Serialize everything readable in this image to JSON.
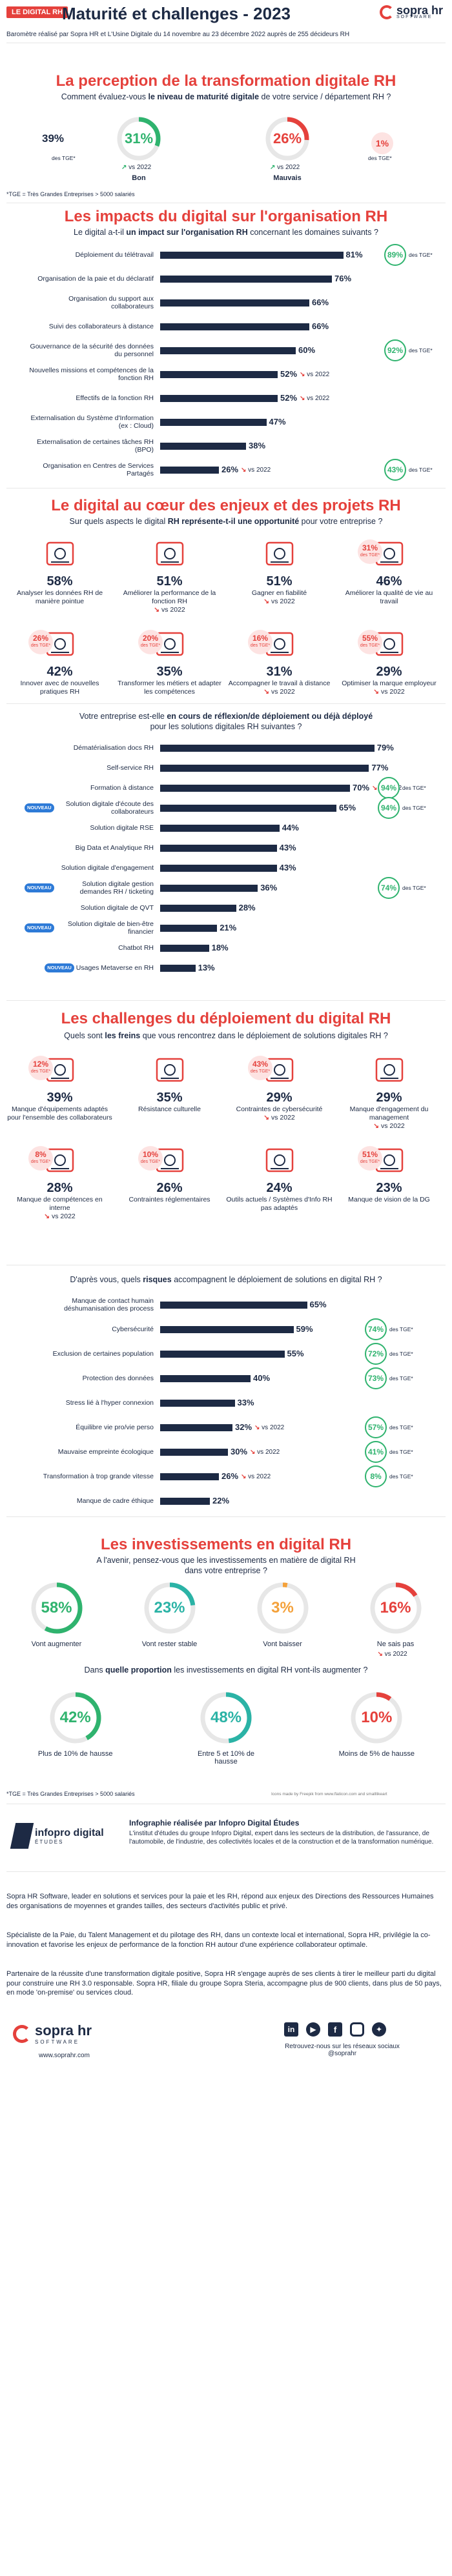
{
  "header": {
    "tag": "LE DIGITAL RH",
    "title": "Maturité et challenges - 2023",
    "brand": "sopra hr",
    "brand_sub": "SOFTWARE",
    "intro": "Baromètre réalisé par Sopra HR et L'Usine Digitale du 14 novembre au 23 décembre 2022 auprès de 255 décideurs RH"
  },
  "s1": {
    "title": "La perception de la transformation digitale RH",
    "q_pre": "Comment évaluez-vous ",
    "q_bold": "le niveau de maturité digitale",
    "q_post": " de votre service / département RH ?",
    "left_pct": "39%",
    "left_tge": "des TGE*",
    "good_pct": "31%",
    "good_trend": "vs 2022",
    "good_label": "Bon",
    "bad_pct": "26%",
    "bad_trend": "vs 2022",
    "bad_label": "Mauvais",
    "right_pct": "1%",
    "right_tge": "des TGE*",
    "note": "*TGE = Très Grandes Entreprises > 5000 salariés"
  },
  "s2": {
    "title": "Les impacts du digital sur l'organisation RH",
    "q_pre": "Le digital a-t-il ",
    "q_bold": "un impact sur l'organisation RH",
    "q_post": " concernant les domaines suivants ?",
    "rows": [
      {
        "label": "Déploiement du télétravail",
        "value": 81,
        "text": "81%"
      },
      {
        "label": "Organisation de la paie et du déclaratif",
        "value": 76,
        "text": "76%"
      },
      {
        "label": "Organisation du support aux collaborateurs",
        "value": 66,
        "text": "66%"
      },
      {
        "label": "Suivi des collaborateurs à distance",
        "value": 66,
        "text": "66%"
      },
      {
        "label": "Gouvernance de la sécurité des données du personnel",
        "value": 60,
        "text": "60%"
      },
      {
        "label": "Nouvelles missions et compétences de la fonction RH",
        "value": 52,
        "text": "52%"
      },
      {
        "label": "Effectifs de la fonction RH",
        "value": 52,
        "text": "52%"
      },
      {
        "label": "Externalisation du Système d'Information (ex : Cloud)",
        "value": 47,
        "text": "47%"
      },
      {
        "label": "Externalisation de certaines tâches RH (BPO)",
        "value": 38,
        "text": "38%"
      },
      {
        "label": "Organisation en Centres de Services Partagés",
        "value": 26,
        "text": "26%"
      }
    ],
    "bubbles": [
      {
        "row": 0,
        "text": "89%",
        "tge": "des TGE*"
      },
      {
        "row": 4,
        "text": "92%",
        "tge": "des TGE*"
      },
      {
        "row": 9,
        "text": "43%",
        "tge": "des TGE*"
      }
    ],
    "trend1": "vs 2022",
    "trend2": "vs 2022",
    "trend3": "vs 2022"
  },
  "s3": {
    "title": "Le digital au cœur des enjeux et des projets RH",
    "q_pre": "Sur quels aspects le digital ",
    "q_bold": "RH représente-t-il une opportunité",
    "q_post": " pour votre entreprise ?",
    "cards": [
      {
        "pct": "58%",
        "text": "Analyser les données RH de manière pointue"
      },
      {
        "pct": "51%",
        "text": "Améliorer la performance de la fonction RH",
        "trend": "vs 2022"
      },
      {
        "pct": "51%",
        "text": "Gagner en fiabilité",
        "trend": "vs 2022"
      },
      {
        "pct": "46%",
        "text": "Améliorer la qualité de vie au travail",
        "mini": "31%",
        "mini_tge": "des TGE*"
      },
      {
        "pct": "42%",
        "text": "Innover avec de nouvelles pratiques RH",
        "mini": "26%",
        "mini_tge": "des TGE*"
      },
      {
        "pct": "35%",
        "text": "Transformer les métiers et adapter les compétences",
        "mini": "20%",
        "mini_tge": "des TGE*"
      },
      {
        "pct": "31%",
        "text": "Accompagner le travail à distance",
        "mini": "16%",
        "mini_tge": "des TGE*",
        "trend": "vs 2022"
      },
      {
        "pct": "29%",
        "text": "Optimiser la marque employeur",
        "mini": "55%",
        "mini_tge": "des TGE*",
        "trend": "vs 2022"
      }
    ],
    "q2_pre": "Votre entreprise est-elle ",
    "q2_bold": "en cours de réflexion/de déploiement ou déjà déployé",
    "q2_post": " pour les solutions digitales RH suivantes ?",
    "rows": [
      {
        "label": "Dématérialisation docs RH",
        "value": 79,
        "text": "79%"
      },
      {
        "label": "Self-service RH",
        "value": 77,
        "text": "77%"
      },
      {
        "label": "Formation à distance",
        "value": 70,
        "text": "70%",
        "trend": "vs 2022"
      },
      {
        "label": "Solution digitale d'écoute des collaborateurs",
        "value": 65,
        "text": "65%",
        "new": "NOUVEAU"
      },
      {
        "label": "Solution digitale RSE",
        "value": 44,
        "text": "44%"
      },
      {
        "label": "Big Data et Analytique RH",
        "value": 43,
        "text": "43%"
      },
      {
        "label": "Solution digitale d'engagement",
        "value": 43,
        "text": "43%"
      },
      {
        "label": "Solution digitale gestion demandes RH / ticketing",
        "value": 36,
        "text": "36%",
        "new": "NOUVEAU"
      },
      {
        "label": "Solution digitale de QVT",
        "value": 28,
        "text": "28%"
      },
      {
        "label": "Solution digitale de bien-être financier",
        "value": 21,
        "text": "21%",
        "new": "NOUVEAU"
      },
      {
        "label": "Chatbot RH",
        "value": 18,
        "text": "18%"
      },
      {
        "label": "Usages Metaverse en RH",
        "value": 13,
        "text": "13%",
        "new": "NOUVEAU"
      }
    ],
    "bubbles": [
      {
        "row": 2,
        "text": "94%",
        "tge": "des TGE*"
      },
      {
        "row": 3,
        "text": "94%",
        "tge": "des TGE*"
      },
      {
        "row": 7,
        "text": "74%",
        "tge": "des TGE*"
      }
    ]
  },
  "s4": {
    "title": "Les challenges du déploiement du digital RH",
    "q_pre": "Quels sont ",
    "q_bold": "les freins",
    "q_post": " que vous rencontrez dans le déploiement de solutions digitales RH ?",
    "cards": [
      {
        "pct": "39%",
        "text": "Manque d'équipements adaptés pour l'ensemble des collaborateurs",
        "mini": "12%",
        "mini_tge": "des TGE*"
      },
      {
        "pct": "35%",
        "text": "Résistance culturelle"
      },
      {
        "pct": "29%",
        "text": "Contraintes de cybersécurité",
        "mini": "43%",
        "mini_tge": "des TGE*",
        "trend": "vs 2022"
      },
      {
        "pct": "29%",
        "text": "Manque d'engagement du management",
        "trend": "vs 2022"
      },
      {
        "pct": "28%",
        "text": "Manque de compétences en interne",
        "mini": "8%",
        "mini_tge": "des TGE*",
        "trend": "vs 2022"
      },
      {
        "pct": "26%",
        "text": "Contraintes réglementaires",
        "mini": "10%",
        "mini_tge": "des TGE*"
      },
      {
        "pct": "24%",
        "text": "Outils actuels / Systèmes d'Info RH pas adaptés"
      },
      {
        "pct": "23%",
        "text": "Manque de vision de la DG",
        "mini": "51%",
        "mini_tge": "des TGE*"
      }
    ],
    "q2_pre": "D'après vous, quels ",
    "q2_bold": "risques",
    "q2_post": " accompagnent le déploiement de solutions en digital RH ?",
    "rows": [
      {
        "label": "Manque de contact humain déshumanisation des process",
        "value": 65,
        "text": "65%"
      },
      {
        "label": "Cybersécurité",
        "value": 59,
        "text": "59%"
      },
      {
        "label": "Exclusion de certaines population",
        "value": 55,
        "text": "55%"
      },
      {
        "label": "Protection des données",
        "value": 40,
        "text": "40%"
      },
      {
        "label": "Stress lié à l'hyper connexion",
        "value": 33,
        "text": "33%"
      },
      {
        "label": "Équilibre vie pro/vie perso",
        "value": 32,
        "text": "32%",
        "trend": "vs 2022"
      },
      {
        "label": "Mauvaise empreinte écologique",
        "value": 30,
        "text": "30%",
        "trend": "vs 2022"
      },
      {
        "label": "Transformation à trop grande vitesse",
        "value": 26,
        "text": "26%",
        "trend": "vs 2022"
      },
      {
        "label": "Manque de cadre éthique",
        "value": 22,
        "text": "22%"
      }
    ],
    "bubbles": [
      {
        "row": 1,
        "text": "74%",
        "tge": "des TGE*"
      },
      {
        "row": 2,
        "text": "72%",
        "tge": "des TGE*"
      },
      {
        "row": 3,
        "text": "73%",
        "tge": "des TGE*"
      },
      {
        "row": 5,
        "text": "57%",
        "tge": "des TGE*"
      },
      {
        "row": 6,
        "text": "41%",
        "tge": "des TGE*"
      },
      {
        "row": 7,
        "text": "8%",
        "tge": "des TGE*"
      }
    ]
  },
  "s5": {
    "title": "Les investissements en digital RH",
    "q_l1": "A l'avenir, pensez-vous que les investissements en matière de digital RH",
    "q_l2": "dans votre entreprise ?",
    "rings": [
      {
        "pct": "58%",
        "label": "Vont augmenter"
      },
      {
        "pct": "23%",
        "label": "Vont rester stable"
      },
      {
        "pct": "3%",
        "label": "Vont baisser"
      },
      {
        "pct": "16%",
        "label": "Ne sais pas",
        "sub": "vs 2022"
      }
    ],
    "q2_pre": "Dans ",
    "q2_bold": "quelle proportion",
    "q2_post": " les investissements en digital RH vont-ils augmenter ?",
    "rings2": [
      {
        "pct": "42%",
        "label": "Plus de 10% de hausse"
      },
      {
        "pct": "48%",
        "label": "Entre 5 et 10% de hausse"
      },
      {
        "pct": "10%",
        "label": "Moins de 5% de hausse"
      }
    ],
    "note": "*TGE = Très Grandes Entreprises > 5000 salariés",
    "credit": "Icons made by Freepik from www.flaticon.com and smalllikeart",
    "logo": "infopro digital",
    "logo_sub": "ÉTUDES",
    "info_title": "Infographie réalisée par Infopro Digital Études",
    "info_text": "L'institut d'études du groupe Infopro Digital, expert dans les secteurs de la distribution, de l'assurance, de l'automobile, de l'industrie, des collectivités locales et de la construction et de la transformation numérique."
  },
  "footer": {
    "p1": "Sopra HR Software, leader en solutions et services pour la paie et les RH, répond aux enjeux des Directions des Ressources Humaines des organisations de moyennes et grandes tailles, des secteurs d'activités public et privé.",
    "p2": "Spécialiste de la Paie, du Talent Management et du pilotage des RH, dans un contexte local et international, Sopra HR, privilégie la co-innovation et favorise les enjeux de performance de la fonction RH autour d'une expérience collaborateur optimale.",
    "p3": "Partenaire de la réussite d'une transformation digitale positive, Sopra HR s'engage auprès de ses clients à tirer le meilleur parti du digital pour construire une RH 3.0 responsable. Sopra HR, filiale du groupe Sopra Steria, accompagne plus de 900 clients, dans plus de 50 pays, en mode 'on-premise' ou services cloud.",
    "brand": "sopra hr",
    "brand_sub": "SOFTWARE",
    "url": "www.soprahr.com",
    "social": "Retrouvez-nous sur les réseaux sociaux @soprahr"
  },
  "colors": {
    "accent": "#e5413c",
    "navy": "#1d2a44",
    "green": "#2fb36e",
    "orange": "#f4a13a",
    "teal": "#2bb3a6",
    "blue": "#2d7ad7"
  }
}
